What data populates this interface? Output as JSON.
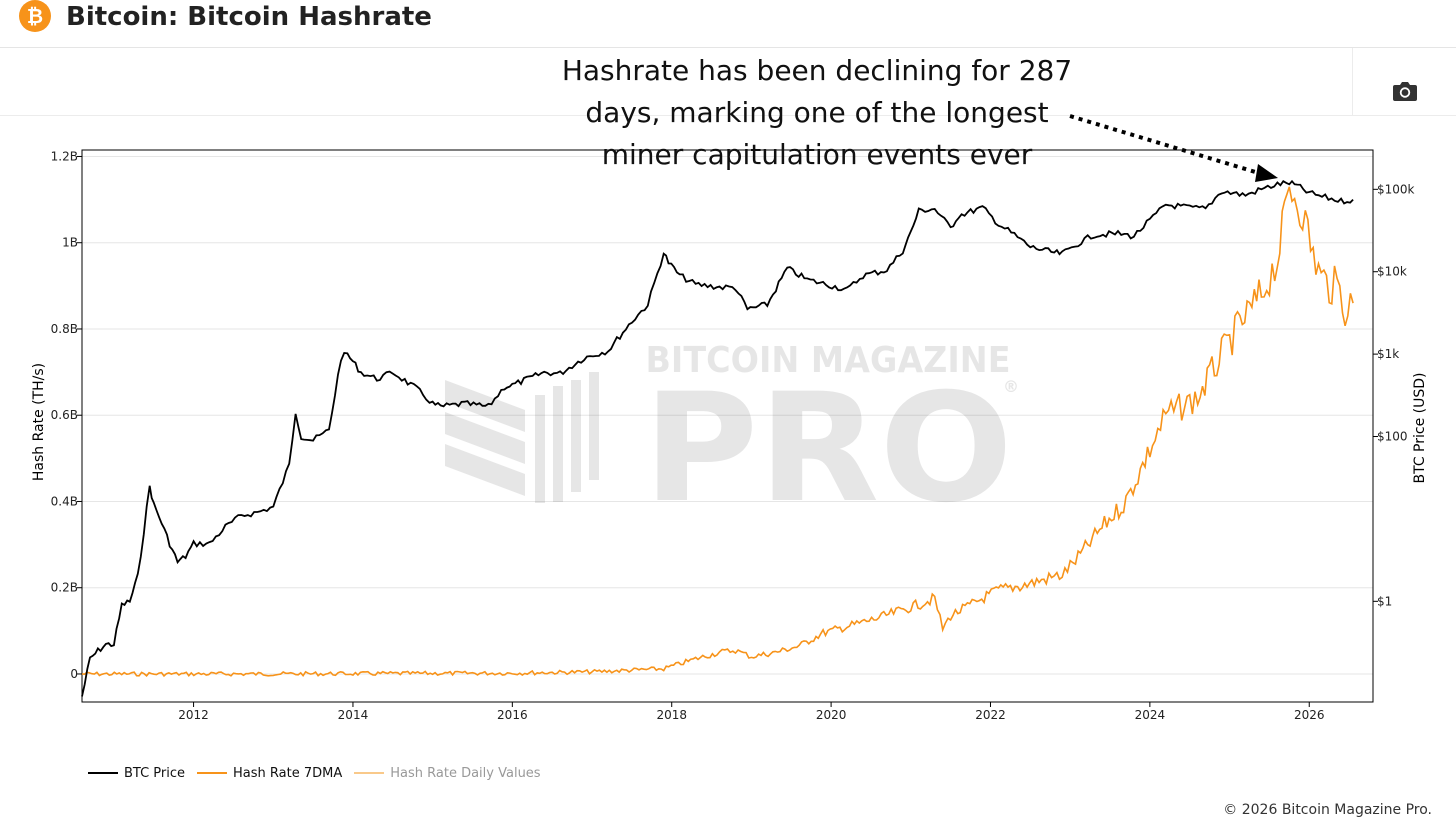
{
  "header": {
    "title": "Bitcoin: Bitcoin Hashrate",
    "logo_icon": "bitcoin-logo-icon",
    "brand_color": "#f7931a"
  },
  "toolbar": {
    "camera_icon": "camera-icon"
  },
  "annotation": {
    "lines": [
      "Hashrate has been declining for 287",
      "days, marking one of the longest",
      "miner capitulation events ever"
    ]
  },
  "watermark": {
    "top": "BITCOIN MAGAZINE",
    "main": "PRO",
    "mark": "®"
  },
  "legend": {
    "items": [
      {
        "label": "BTC Price",
        "color": "#000000"
      },
      {
        "label": "Hash Rate 7DMA",
        "color": "#f7931a"
      },
      {
        "label": "Hash Rate Daily Values",
        "color": "#f9c98a"
      }
    ]
  },
  "footer": {
    "copyright": "© 2026 Bitcoin Magazine Pro."
  },
  "chart_data": {
    "type": "line",
    "title": "Bitcoin: Bitcoin Hashrate",
    "xlabel": "",
    "ylabel": "Hash Rate (TH/s)",
    "y2label": "BTC Price (USD)",
    "x_ticks": [
      "2012",
      "2014",
      "2016",
      "2018",
      "2020",
      "2022",
      "2024",
      "2026"
    ],
    "x_range": [
      2010.6,
      2026.8
    ],
    "y_ticks": [
      {
        "value": 0,
        "label": "0"
      },
      {
        "value": 0.2,
        "label": "0.2B"
      },
      {
        "value": 0.4,
        "label": "0.4B"
      },
      {
        "value": 0.6,
        "label": "0.6B"
      },
      {
        "value": 0.8,
        "label": "0.8B"
      },
      {
        "value": 1.0,
        "label": "1B"
      },
      {
        "value": 1.2,
        "label": "1.2B"
      }
    ],
    "ylim": [
      -0.065,
      1.215
    ],
    "y2_scale": "log",
    "y2_ticks": [
      {
        "value": 1,
        "label": "$1"
      },
      {
        "value": 100,
        "label": "$100"
      },
      {
        "value": 1000,
        "label": "$1k"
      },
      {
        "value": 10000,
        "label": "$10k"
      },
      {
        "value": 100000,
        "label": "$100k"
      }
    ],
    "y2lim": [
      0.06,
      300000
    ],
    "grid": true,
    "legend_position": "bottom-left",
    "series": [
      {
        "name": "BTC Price",
        "axis": "y2",
        "color": "#000000",
        "x": [
          2010.6,
          2010.7,
          2010.8,
          2010.9,
          2011.0,
          2011.1,
          2011.2,
          2011.3,
          2011.45,
          2011.5,
          2011.6,
          2011.7,
          2011.8,
          2011.9,
          2012.0,
          2012.2,
          2012.4,
          2012.6,
          2012.8,
          2013.0,
          2013.2,
          2013.28,
          2013.35,
          2013.5,
          2013.7,
          2013.85,
          2013.93,
          2014.1,
          2014.3,
          2014.5,
          2014.8,
          2015.0,
          2015.1,
          2015.4,
          2015.7,
          2015.9,
          2016.0,
          2016.4,
          2016.6,
          2016.9,
          2017.2,
          2017.5,
          2017.7,
          2017.9,
          2017.96,
          2018.1,
          2018.3,
          2018.6,
          2018.8,
          2018.95,
          2019.2,
          2019.45,
          2019.7,
          2019.9,
          2020.2,
          2020.4,
          2020.7,
          2020.9,
          2021.0,
          2021.1,
          2021.3,
          2021.5,
          2021.6,
          2021.9,
          2022.1,
          2022.3,
          2022.5,
          2022.8,
          2022.9,
          2023.1,
          2023.3,
          2023.6,
          2023.8,
          2024.0,
          2024.2,
          2024.5,
          2024.7,
          2024.9,
          2025.2,
          2025.4,
          2025.6,
          2025.75,
          2025.85,
          2026.0,
          2026.2,
          2026.4,
          2026.55
        ],
        "values": [
          0.07,
          0.2,
          0.25,
          0.3,
          0.3,
          0.9,
          1.0,
          2.0,
          25,
          15,
          9,
          5,
          3,
          3.5,
          5,
          5,
          8,
          11,
          12,
          14,
          45,
          200,
          100,
          90,
          120,
          900,
          1000,
          600,
          500,
          600,
          380,
          250,
          230,
          250,
          230,
          400,
          420,
          600,
          580,
          900,
          1100,
          2500,
          4000,
          17000,
          13000,
          9000,
          7000,
          6500,
          6400,
          3500,
          4000,
          11000,
          8000,
          7200,
          6000,
          9000,
          10500,
          18000,
          30000,
          55000,
          58000,
          34000,
          48000,
          60000,
          38000,
          28000,
          20000,
          17000,
          16500,
          22000,
          28000,
          29000,
          27000,
          42000,
          65000,
          60000,
          58000,
          95000,
          85000,
          100000,
          115000,
          120000,
          110000,
          90000,
          80000,
          72000,
          75000
        ]
      },
      {
        "name": "Hash Rate 7DMA",
        "axis": "y",
        "color": "#f7931a",
        "x": [
          2010.6,
          2013.0,
          2016.0,
          2017.0,
          2017.9,
          2018.3,
          2018.6,
          2018.8,
          2019.0,
          2019.3,
          2019.6,
          2019.9,
          2020.2,
          2020.6,
          2021.0,
          2021.3,
          2021.4,
          2021.5,
          2021.8,
          2022.1,
          2022.4,
          2022.7,
          2022.9,
          2023.1,
          2023.4,
          2023.7,
          2024.0,
          2024.2,
          2024.4,
          2024.6,
          2024.9,
          2025.1,
          2025.4,
          2025.6,
          2025.75,
          2025.85,
          2025.95,
          2026.05,
          2026.15,
          2026.25,
          2026.35,
          2026.45,
          2026.55
        ],
        "values": [
          0,
          0.0001,
          0.002,
          0.005,
          0.012,
          0.035,
          0.05,
          0.055,
          0.04,
          0.05,
          0.065,
          0.095,
          0.11,
          0.13,
          0.155,
          0.175,
          0.105,
          0.135,
          0.165,
          0.195,
          0.205,
          0.22,
          0.23,
          0.27,
          0.34,
          0.4,
          0.52,
          0.6,
          0.62,
          0.64,
          0.74,
          0.8,
          0.88,
          0.96,
          1.13,
          1.1,
          1.05,
          0.97,
          0.92,
          0.9,
          0.9,
          0.85,
          0.86
        ]
      }
    ]
  }
}
